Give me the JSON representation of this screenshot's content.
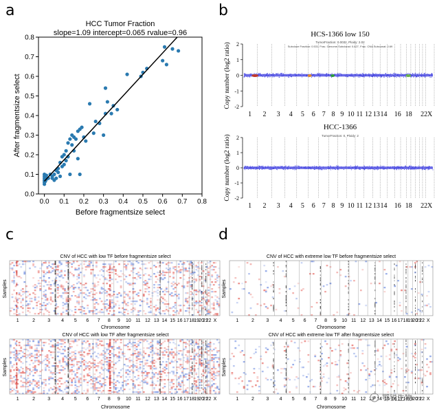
{
  "panels": {
    "a": {
      "letter": "a"
    },
    "b": {
      "letter": "b"
    },
    "c": {
      "letter": "c"
    },
    "d": {
      "letter": "d"
    }
  },
  "watermark": {
    "text": "鄂锐生物"
  },
  "chart_data": [
    {
      "id": "a",
      "type": "scatter",
      "title": "HCC Tumor Fraction",
      "subtitle": "slope=1.09 intercept=0.065 rvalue=0.96",
      "xlabel": "Before fragmentsize select",
      "ylabel": "After fragmentsize select",
      "xlim": [
        -0.03,
        0.8
      ],
      "ylim": [
        0.0,
        0.8
      ],
      "xticks": [
        "0.0",
        "0.1",
        "0.2",
        "0.3",
        "0.4",
        "0.5",
        "0.6",
        "0.7",
        "0.8"
      ],
      "yticks": [
        "0.0",
        "0.1",
        "0.2",
        "0.3",
        "0.4",
        "0.5",
        "0.6",
        "0.7",
        "0.8"
      ],
      "fit": {
        "slope": 1.09,
        "intercept": 0.065
      },
      "point_color": "#2a7ab0",
      "points": [
        [
          0.0,
          0.05
        ],
        [
          0.0,
          0.06
        ],
        [
          0.0,
          0.07
        ],
        [
          0.0,
          0.08
        ],
        [
          0.0,
          0.09
        ],
        [
          0.0,
          0.1
        ],
        [
          0.005,
          0.065
        ],
        [
          0.005,
          0.085
        ],
        [
          0.01,
          0.075
        ],
        [
          0.01,
          0.095
        ],
        [
          0.02,
          0.08
        ],
        [
          0.03,
          0.1
        ],
        [
          0.04,
          0.08
        ],
        [
          0.04,
          0.09
        ],
        [
          0.05,
          0.07
        ],
        [
          0.05,
          0.1
        ],
        [
          0.06,
          0.08
        ],
        [
          0.06,
          0.12
        ],
        [
          0.07,
          0.11
        ],
        [
          0.07,
          0.13
        ],
        [
          0.08,
          0.09
        ],
        [
          0.08,
          0.16
        ],
        [
          0.09,
          0.14
        ],
        [
          0.09,
          0.19
        ],
        [
          0.1,
          0.15
        ],
        [
          0.1,
          0.2
        ],
        [
          0.11,
          0.17
        ],
        [
          0.11,
          0.22
        ],
        [
          0.12,
          0.26
        ],
        [
          0.12,
          0.19
        ],
        [
          0.13,
          0.28
        ],
        [
          0.13,
          0.1
        ],
        [
          0.14,
          0.25
        ],
        [
          0.14,
          0.3
        ],
        [
          0.15,
          0.29
        ],
        [
          0.15,
          0.22
        ],
        [
          0.16,
          0.28
        ],
        [
          0.17,
          0.32
        ],
        [
          0.17,
          0.18
        ],
        [
          0.18,
          0.1
        ],
        [
          0.18,
          0.33
        ],
        [
          0.19,
          0.34
        ],
        [
          0.2,
          0.29
        ],
        [
          0.21,
          0.27
        ],
        [
          0.23,
          0.46
        ],
        [
          0.25,
          0.31
        ],
        [
          0.26,
          0.37
        ],
        [
          0.28,
          0.36
        ],
        [
          0.3,
          0.3
        ],
        [
          0.31,
          0.54
        ],
        [
          0.31,
          0.41
        ],
        [
          0.32,
          0.47
        ],
        [
          0.34,
          0.41
        ],
        [
          0.35,
          0.45
        ],
        [
          0.37,
          0.43
        ],
        [
          0.42,
          0.61
        ],
        [
          0.49,
          0.6
        ],
        [
          0.5,
          0.62
        ],
        [
          0.52,
          0.64
        ],
        [
          0.6,
          0.68
        ],
        [
          0.61,
          0.75
        ],
        [
          0.62,
          0.66
        ],
        [
          0.65,
          0.74
        ],
        [
          0.68,
          0.73
        ]
      ]
    },
    {
      "id": "b-top",
      "type": "scatter",
      "title": "HCS-1366  low 150",
      "subtitle": "TumorFraction: 0.0032, Ploidy: 2.02",
      "subtitle2": "Subclone Fraction: 0.531, Frac. Genome Subclonal: 0.827, Frac. CNA Subclonal: 0.69",
      "ylabel": "Copy number (log2 ratio)",
      "ylim": [
        -2,
        2
      ],
      "yticks": [
        "2",
        "1",
        "0",
        "-1",
        "-2"
      ],
      "chromosomes": [
        "1",
        "2",
        "3",
        "4",
        "5",
        "6",
        "7",
        "8",
        "9",
        "10",
        "11",
        "12",
        "13",
        "14",
        "16",
        "18",
        "22",
        "X"
      ],
      "baseline": 0,
      "point_color": "#3a3adf"
    },
    {
      "id": "b-bottom",
      "type": "scatter",
      "title": "HCC-1366",
      "subtitle": "TumorFraction: 0, Ploidy: 2",
      "ylabel": "Copy number (log2 ratio)",
      "ylim": [
        -2,
        2
      ],
      "yticks": [
        "2",
        "1",
        "0",
        "-1",
        "-2"
      ],
      "chromosomes": [
        "1",
        "2",
        "3",
        "4",
        "5",
        "6",
        "7",
        "8",
        "9",
        "10",
        "11",
        "12",
        "13",
        "14",
        "16",
        "18",
        "22",
        "X"
      ],
      "baseline": 0,
      "point_color": "#3a3adf"
    },
    {
      "id": "c-top",
      "type": "heatmap",
      "title": "CNV of HCC with low TF before fragmentsize select",
      "ylabel": "Samples",
      "xlabel": "Chromosome",
      "chromosomes": [
        "1",
        "2",
        "3",
        "4",
        "5",
        "6",
        "7",
        "8",
        "9",
        "10",
        "11",
        "12",
        "13",
        "14",
        "15",
        "16",
        "17",
        "18",
        "19",
        "20",
        "21",
        "22",
        "X"
      ]
    },
    {
      "id": "c-bottom",
      "type": "heatmap",
      "title": "CNV of HCC with low TF after fragmentsize select",
      "ylabel": "Samples",
      "xlabel": "Chromosome",
      "chromosomes": [
        "1",
        "2",
        "3",
        "4",
        "5",
        "6",
        "7",
        "8",
        "9",
        "10",
        "11",
        "12",
        "13",
        "14",
        "15",
        "16",
        "17",
        "18",
        "19",
        "20",
        "21",
        "22",
        "X"
      ]
    },
    {
      "id": "d-top",
      "type": "heatmap",
      "title": "CNV of HCC with extreme low TF before fragmentsize select",
      "ylabel": "Samples",
      "xlabel": "Chromosome",
      "chromosomes": [
        "1",
        "2",
        "3",
        "4",
        "5",
        "6",
        "7",
        "8",
        "9",
        "10",
        "11",
        "12",
        "13",
        "14",
        "15",
        "16",
        "17",
        "18",
        "19",
        "20",
        "21",
        "22",
        "X"
      ]
    },
    {
      "id": "d-bottom",
      "type": "heatmap",
      "title": "CNV of HCC with extreme low TF after fragmentsize select",
      "ylabel": "Samples",
      "xlabel": "Chromosome",
      "chromosomes": [
        "1",
        "2",
        "3",
        "4",
        "5",
        "6",
        "7",
        "8",
        "9",
        "10",
        "11",
        "12",
        "13",
        "14",
        "15",
        "16",
        "17",
        "18",
        "19",
        "20",
        "21",
        "22",
        "X"
      ]
    }
  ]
}
